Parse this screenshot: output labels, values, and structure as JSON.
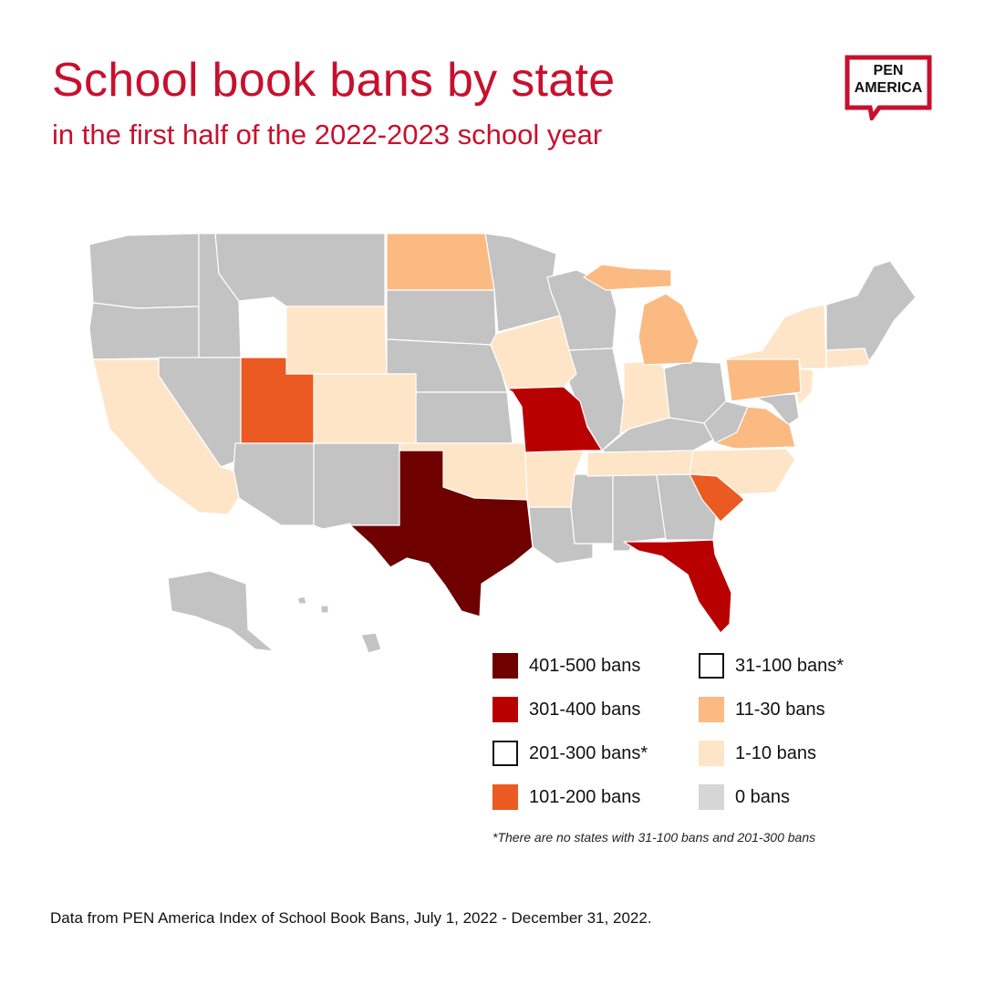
{
  "header": {
    "title": "School book bans by state",
    "subtitle": "in the first half of the 2022-2023 school year"
  },
  "logo": {
    "line1": "PEN",
    "line2": "AMERICA",
    "color": "#c8102e"
  },
  "legend": {
    "items": [
      {
        "label": "401-500 bans",
        "color": "#6e0000"
      },
      {
        "label": "301-400 bans",
        "color": "#b90000"
      },
      {
        "label": "201-300 bans*",
        "color": "#ffffff"
      },
      {
        "label": "101-200 bans",
        "color": "#eb5a21"
      },
      {
        "label": "31-100 bans*",
        "color": "#ffffff"
      },
      {
        "label": "11-30 bans",
        "color": "#fbba82"
      },
      {
        "label": "1-10 bans",
        "color": "#fee5c7"
      },
      {
        "label": "0 bans",
        "color": "#d6d6d6"
      }
    ],
    "footnote": "*There are no states with 31-100 bans and 201-300 bans"
  },
  "source": "Data from PEN America Index of School Book Bans, July 1, 2022 - December 31, 2022.",
  "colors": {
    "title": "#c8102e",
    "zero": "#c3c3c3",
    "tier_1_10": "#fee5c7",
    "tier_11_30": "#fbba82",
    "tier_101_200": "#eb5a21",
    "tier_301_400": "#b90000",
    "tier_401_500": "#6e0000"
  }
}
